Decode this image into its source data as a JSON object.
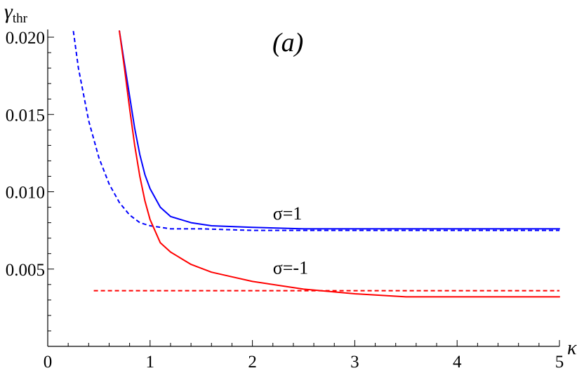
{
  "chart_data": {
    "type": "line",
    "panel_label": "(a)",
    "xlabel": "κ",
    "ylabel": "γ",
    "ylabel_subscript": "thr",
    "xlim": [
      0,
      5
    ],
    "ylim": [
      0,
      0.0205
    ],
    "xticks": [
      0,
      1,
      2,
      3,
      4,
      5
    ],
    "xtick_labels": [
      "0",
      "1",
      "2",
      "3",
      "4",
      "5"
    ],
    "yticks": [
      0.005,
      0.01,
      0.015,
      0.02
    ],
    "ytick_labels": [
      "0.005",
      "0.010",
      "0.015",
      "0.020"
    ],
    "grid": false,
    "annotations": [
      {
        "text": "σ=1",
        "x": 2.2,
        "y": 0.0082
      },
      {
        "text": "σ=-1",
        "x": 2.2,
        "y": 0.0047
      }
    ],
    "series": [
      {
        "color": "#0000ff",
        "dash": "solid",
        "x": [
          0.7,
          0.75,
          0.8,
          0.85,
          0.9,
          0.95,
          1.0,
          1.1,
          1.2,
          1.4,
          1.6,
          2.0,
          2.5,
          3.0,
          4.0,
          5.0
        ],
        "y": [
          0.0204,
          0.0183,
          0.0162,
          0.0141,
          0.0124,
          0.0111,
          0.0102,
          0.009,
          0.0084,
          0.008,
          0.0078,
          0.0077,
          0.0076,
          0.0076,
          0.0076,
          0.0076
        ]
      },
      {
        "color": "#0000ff",
        "dash": "dashed",
        "x": [
          0.25,
          0.3,
          0.4,
          0.5,
          0.6,
          0.7,
          0.8,
          0.9,
          1.0,
          1.2,
          1.5,
          2.0,
          3.0,
          4.0,
          5.0
        ],
        "y": [
          0.0204,
          0.018,
          0.0146,
          0.0122,
          0.0105,
          0.0093,
          0.0085,
          0.008,
          0.0078,
          0.0076,
          0.0076,
          0.0075,
          0.0075,
          0.0075,
          0.0075
        ]
      },
      {
        "color": "#ff0000",
        "dash": "solid",
        "x": [
          0.7,
          0.75,
          0.8,
          0.85,
          0.9,
          0.95,
          1.0,
          1.1,
          1.2,
          1.4,
          1.6,
          1.8,
          2.0,
          2.5,
          3.0,
          3.5,
          4.0,
          5.0
        ],
        "y": [
          0.0204,
          0.018,
          0.0154,
          0.013,
          0.011,
          0.0094,
          0.0082,
          0.0067,
          0.0061,
          0.0053,
          0.0048,
          0.0045,
          0.0042,
          0.0037,
          0.0034,
          0.0032,
          0.0032,
          0.0032
        ]
      },
      {
        "color": "#ff0000",
        "dash": "dashed",
        "x": [
          0.45,
          5.0
        ],
        "y": [
          0.0036,
          0.0036
        ]
      }
    ]
  }
}
